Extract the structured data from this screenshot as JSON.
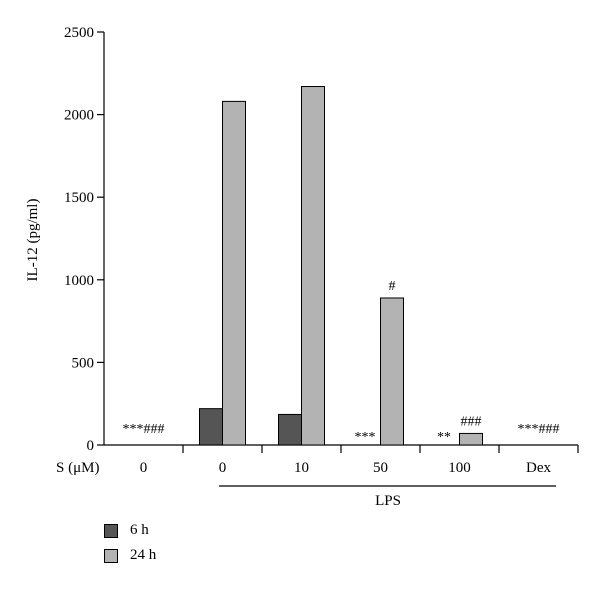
{
  "chart_data": {
    "type": "bar",
    "ylabel": "IL-12 (pg/ml)",
    "ylim": [
      0,
      2500
    ],
    "yticks": [
      "0",
      "500",
      "1000",
      "1500",
      "2000",
      "2500"
    ],
    "row_label": "S (μM)",
    "categories": [
      "0",
      "0",
      "10",
      "50",
      "100",
      "Dex"
    ],
    "group_label": "LPS",
    "series": [
      {
        "name": "6 h",
        "color": "#555555",
        "values": [
          0,
          220,
          185,
          0,
          0,
          0
        ]
      },
      {
        "name": "24 h",
        "color": "#b3b3b3",
        "values": [
          0,
          2080,
          2170,
          890,
          70,
          0
        ]
      }
    ],
    "annotations": [
      {
        "category": 0,
        "text": "***###"
      },
      {
        "category": 3,
        "text": "***"
      },
      {
        "category": 3,
        "text": "#"
      },
      {
        "category": 4,
        "text": "**"
      },
      {
        "category": 4,
        "text": "###"
      },
      {
        "category": 5,
        "text": "***###"
      }
    ]
  }
}
